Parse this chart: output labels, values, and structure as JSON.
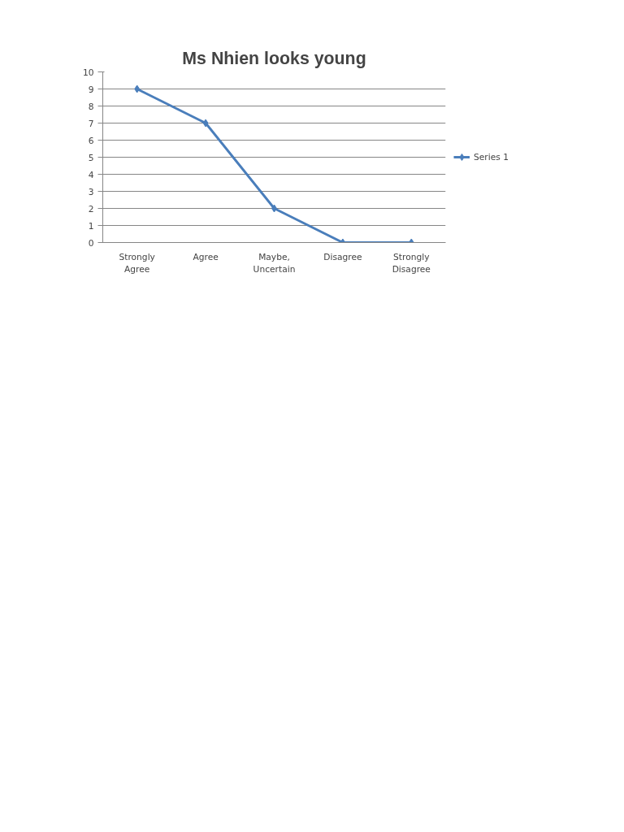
{
  "chart_data": {
    "type": "line",
    "title": "Ms Nhien looks young",
    "categories": [
      "Strongly Agree",
      "Agree",
      "Maybe, Uncertain",
      "Disagree",
      "Strongly Disagree"
    ],
    "series": [
      {
        "name": "Series 1",
        "color": "#4a7ebb",
        "values": [
          9,
          7,
          2,
          0,
          0
        ]
      }
    ],
    "ylim": [
      0,
      10
    ],
    "yticks": [
      0,
      1,
      2,
      3,
      4,
      5,
      6,
      7,
      8,
      9,
      10
    ],
    "grid": "y",
    "legend": "right",
    "marker": "diamond",
    "line_style": "solid"
  }
}
